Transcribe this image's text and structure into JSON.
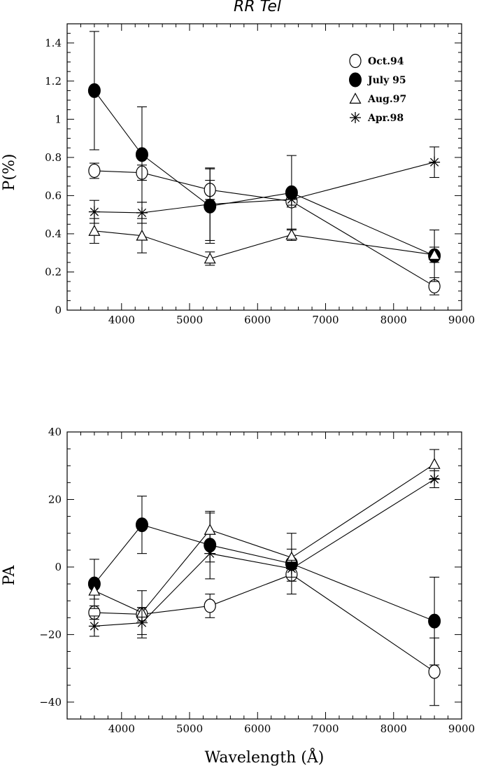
{
  "chart_data": [
    {
      "type": "line",
      "title": "RR Tel",
      "xlabel": "",
      "ylabel": "P(%)",
      "xlim": [
        3200,
        9000
      ],
      "ylim": [
        0,
        1.5
      ],
      "xticks": [
        4000,
        5000,
        6000,
        7000,
        8000,
        9000
      ],
      "xtick_labels": [
        "4000",
        "5000",
        "6000",
        "7000",
        "8000",
        "9000"
      ],
      "yticks": [
        0,
        0.2,
        0.4,
        0.6,
        0.8,
        1,
        1.2,
        1.4
      ],
      "ytick_labels": [
        "0",
        "0.2",
        "0.4",
        "0.6",
        "0.8",
        "1",
        "1.2",
        "1.4"
      ],
      "legend_position": "top-right",
      "x": [
        3600,
        4300,
        5300,
        6500,
        8600
      ],
      "series": [
        {
          "name": "Oct.94",
          "marker": "open-circle",
          "values": [
            0.73,
            0.72,
            0.63,
            0.57,
            0.125
          ],
          "errors": [
            0.04,
            0.04,
            0.05,
            0.03,
            0.045
          ]
        },
        {
          "name": "July 95",
          "marker": "filled-circle",
          "values": [
            1.15,
            0.815,
            0.545,
            0.615,
            0.285
          ],
          "errors": [
            0.31,
            0.25,
            0.195,
            0.195,
            0.135
          ]
        },
        {
          "name": "Aug.97",
          "marker": "open-triangle",
          "values": [
            0.415,
            0.39,
            0.27,
            0.395,
            0.29
          ],
          "errors": [
            0.065,
            0.09,
            0.035,
            0.03,
            0.04
          ]
        },
        {
          "name": "Apr.98",
          "marker": "asterisk",
          "values": [
            0.515,
            0.51,
            0.555,
            0.58,
            0.775
          ],
          "errors": [
            0.06,
            0.055,
            0.19,
            0.03,
            0.08
          ]
        }
      ]
    },
    {
      "type": "line",
      "title": "",
      "xlabel": "Wavelength (Å)",
      "ylabel": "PA",
      "xlim": [
        3200,
        9000
      ],
      "ylim": [
        -45,
        40
      ],
      "xticks": [
        4000,
        5000,
        6000,
        7000,
        8000,
        9000
      ],
      "xtick_labels": [
        "4000",
        "5000",
        "6000",
        "7000",
        "8000",
        "9000"
      ],
      "yticks": [
        -40,
        -20,
        0,
        20,
        40
      ],
      "ytick_labels": [
        "−40",
        "−20",
        "0",
        "20",
        "40"
      ],
      "x": [
        3600,
        4300,
        5300,
        6500,
        8600
      ],
      "series": [
        {
          "name": "Oct.94",
          "marker": "open-circle",
          "values": [
            -13.5,
            -14,
            -11.5,
            -2.2,
            -31
          ],
          "errors": [
            2,
            2,
            3.5,
            2,
            10
          ]
        },
        {
          "name": "July 95",
          "marker": "filled-circle",
          "values": [
            -5,
            12.5,
            6.5,
            1,
            -16
          ],
          "errors": [
            7.3,
            8.5,
            10,
            9,
            13
          ]
        },
        {
          "name": "Aug.97",
          "marker": "open-triangle",
          "values": [
            -7,
            -13.5,
            11,
            2.8,
            30.5
          ],
          "errors": [
            2.5,
            6.5,
            5,
            2.5,
            4.3
          ]
        },
        {
          "name": "Apr.98",
          "marker": "asterisk",
          "values": [
            -17.5,
            -16.5,
            4,
            -0.5,
            26
          ],
          "errors": [
            3,
            4.5,
            2.5,
            2.5,
            2.5
          ]
        }
      ]
    }
  ]
}
